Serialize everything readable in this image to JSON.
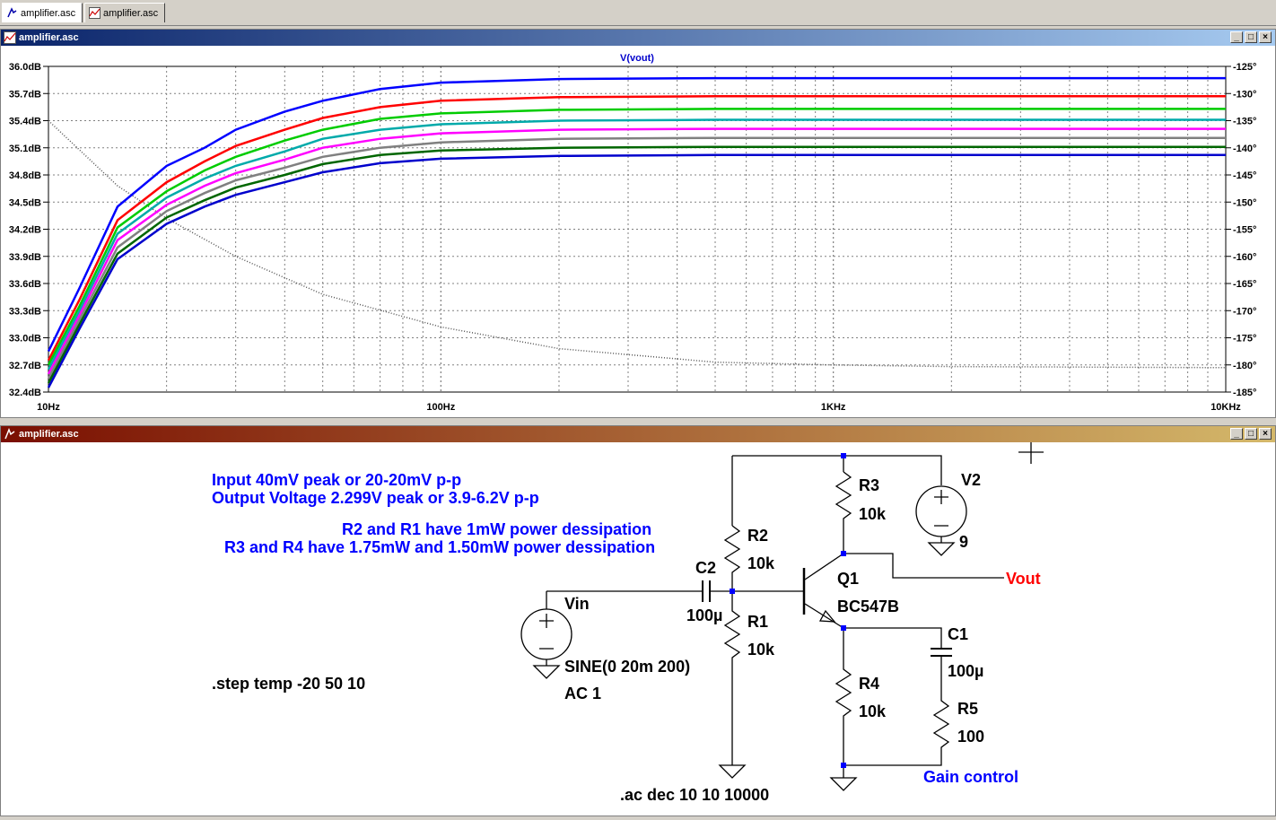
{
  "tabs": [
    {
      "label": "amplifier.asc",
      "icon": "schematic-icon"
    },
    {
      "label": "amplifier.asc",
      "icon": "waveform-icon"
    }
  ],
  "plot_window": {
    "title": "amplifier.asc",
    "icon": "waveform-icon"
  },
  "schematic_window": {
    "title": "amplifier.asc",
    "icon": "schematic-icon"
  },
  "colors": {
    "plot_titlebar": [
      "#0a246a",
      "#a6caf0"
    ],
    "schematic_titlebar": [
      "#7a0e00",
      "#d4b86a"
    ],
    "component": "#000000",
    "wire_node": "#0000ff",
    "annotation": "#0000ff",
    "label_vout": "#ff0000"
  },
  "chart_data": {
    "type": "line",
    "title": "V(vout)",
    "x_scale": "log",
    "xlim": [
      10,
      10000
    ],
    "x_ticks": [
      "10Hz",
      "100Hz",
      "1KHz",
      "10KHz"
    ],
    "ylim_left": [
      32.4,
      36.0
    ],
    "y_ticks_left": [
      "36.0dB",
      "35.7dB",
      "35.4dB",
      "35.1dB",
      "34.8dB",
      "34.5dB",
      "34.2dB",
      "33.9dB",
      "33.6dB",
      "33.3dB",
      "33.0dB",
      "32.7dB",
      "32.4dB"
    ],
    "ylim_right": [
      -185,
      -125
    ],
    "y_ticks_right": [
      "-125°",
      "-130°",
      "-135°",
      "-140°",
      "-145°",
      "-150°",
      "-155°",
      "-160°",
      "-165°",
      "-170°",
      "-175°",
      "-180°",
      "-185°"
    ],
    "grid": true,
    "x": [
      10,
      12,
      15,
      20,
      25,
      30,
      40,
      50,
      70,
      100,
      200,
      500,
      1000,
      10000
    ],
    "series": [
      {
        "color": "#0000ff",
        "values": [
          32.85,
          33.55,
          34.45,
          34.9,
          35.1,
          35.3,
          35.5,
          35.62,
          35.75,
          35.82,
          35.86,
          35.87,
          35.87,
          35.87
        ]
      },
      {
        "color": "#ff0000",
        "values": [
          32.75,
          33.42,
          34.3,
          34.72,
          34.95,
          35.12,
          35.3,
          35.43,
          35.55,
          35.62,
          35.66,
          35.67,
          35.67,
          35.67
        ]
      },
      {
        "color": "#00cc00",
        "values": [
          32.7,
          33.35,
          34.22,
          34.62,
          34.85,
          35.0,
          35.18,
          35.3,
          35.42,
          35.48,
          35.52,
          35.53,
          35.53,
          35.53
        ]
      },
      {
        "color": "#00aaaa",
        "values": [
          32.65,
          33.3,
          34.15,
          34.55,
          34.76,
          34.9,
          35.06,
          35.2,
          35.3,
          35.36,
          35.4,
          35.41,
          35.41,
          35.41
        ]
      },
      {
        "color": "#ff00ff",
        "values": [
          32.6,
          33.25,
          34.08,
          34.47,
          34.68,
          34.82,
          34.97,
          35.1,
          35.2,
          35.26,
          35.3,
          35.31,
          35.31,
          35.31
        ]
      },
      {
        "color": "#808080",
        "values": [
          32.55,
          33.2,
          34.0,
          34.4,
          34.6,
          34.74,
          34.88,
          35.0,
          35.1,
          35.16,
          35.2,
          35.21,
          35.21,
          35.21
        ]
      },
      {
        "color": "#006600",
        "values": [
          32.5,
          33.15,
          33.93,
          34.33,
          34.52,
          34.66,
          34.8,
          34.92,
          35.02,
          35.07,
          35.1,
          35.11,
          35.11,
          35.11
        ]
      },
      {
        "color": "#0000cc",
        "values": [
          32.45,
          33.1,
          33.87,
          34.26,
          34.45,
          34.58,
          34.72,
          34.83,
          34.93,
          34.98,
          35.01,
          35.02,
          35.02,
          35.02
        ]
      }
    ],
    "phase": {
      "x": [
        10,
        15,
        20,
        30,
        50,
        100,
        200,
        500,
        1000,
        2000,
        10000
      ],
      "values": [
        -135,
        -147,
        -153,
        -160,
        -167,
        -173,
        -177,
        -179.5,
        -180,
        -180.3,
        -180.5
      ]
    }
  },
  "schematic": {
    "notes": [
      "Input 40mV peak or 20-20mV p-p",
      "Output Voltage 2.299V peak or 3.9-6.2V p-p",
      "R2 and R1 have 1mW power dessipation",
      "R3 and R4 have 1.75mW and 1.50mW power dessipation"
    ],
    "step_directive": ".step temp -20 50 10",
    "ac_directive": ".ac dec 10 10 10000",
    "gain_control_label": "Gain control",
    "components": {
      "r1": {
        "name": "R1",
        "value": "10k"
      },
      "r2": {
        "name": "R2",
        "value": "10k"
      },
      "r3": {
        "name": "R3",
        "value": "10k"
      },
      "r4": {
        "name": "R4",
        "value": "10k"
      },
      "r5": {
        "name": "R5",
        "value": "100"
      },
      "c1": {
        "name": "C1",
        "value": "100µ"
      },
      "c2": {
        "name": "C2",
        "value": "100µ"
      },
      "q1": {
        "name": "Q1",
        "value": "BC547B"
      },
      "v2": {
        "name": "V2",
        "value": "9"
      },
      "vin": {
        "name": "Vin",
        "value": "SINE(0 20m 200)",
        "ac": "AC 1"
      }
    },
    "net_vout": "Vout"
  }
}
